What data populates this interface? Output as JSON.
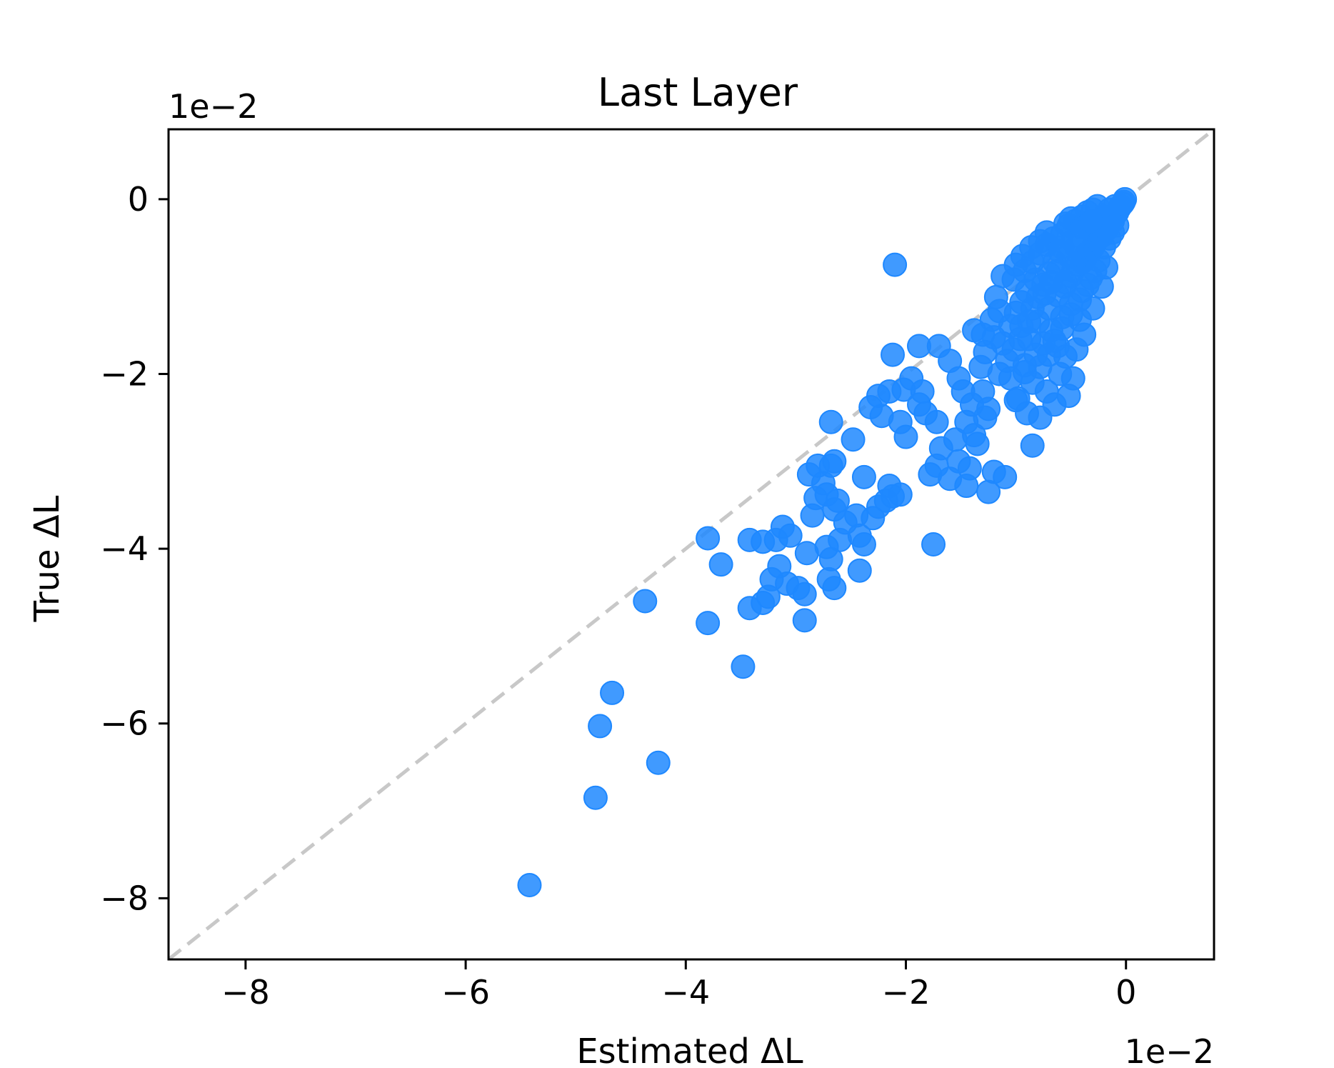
{
  "chart_data": {
    "type": "scatter",
    "title": "Last Layer",
    "xlabel": "Estimated ΔL",
    "ylabel": "True ΔL",
    "x_offset_text": "1e−2",
    "y_offset_text": "1e−2",
    "xlim": [
      -8.7,
      0.8
    ],
    "ylim": [
      -8.7,
      0.8
    ],
    "xticks": [
      -8,
      -6,
      -4,
      -2,
      0
    ],
    "xtick_labels": [
      "−8",
      "−6",
      "−4",
      "−2",
      "0"
    ],
    "yticks": [
      0,
      -2,
      -4,
      -6,
      -8
    ],
    "ytick_labels": [
      "0",
      "−2",
      "−4",
      "−6",
      "−8"
    ],
    "grid": false,
    "reference_line": {
      "slope": 1,
      "intercept": 0,
      "style": "dashed",
      "color": "#c8c8c8"
    },
    "marker_color": "#1e88ff",
    "points": [
      [
        -5.42,
        -7.85
      ],
      [
        -4.82,
        -6.85
      ],
      [
        -4.25,
        -6.45
      ],
      [
        -4.78,
        -6.03
      ],
      [
        -4.67,
        -5.65
      ],
      [
        -4.37,
        -4.6
      ],
      [
        -3.8,
        -4.85
      ],
      [
        -3.48,
        -5.35
      ],
      [
        -3.8,
        -3.88
      ],
      [
        -3.68,
        -4.18
      ],
      [
        -3.42,
        -4.68
      ],
      [
        -3.3,
        -4.62
      ],
      [
        -3.25,
        -4.55
      ],
      [
        -3.42,
        -3.9
      ],
      [
        -3.3,
        -3.92
      ],
      [
        -3.18,
        -3.9
      ],
      [
        -3.15,
        -4.2
      ],
      [
        -3.22,
        -4.35
      ],
      [
        -3.12,
        -3.75
      ],
      [
        -3.05,
        -3.85
      ],
      [
        -3.08,
        -4.4
      ],
      [
        -2.98,
        -4.45
      ],
      [
        -2.92,
        -4.82
      ],
      [
        -2.92,
        -4.52
      ],
      [
        -2.9,
        -4.05
      ],
      [
        -2.85,
        -3.62
      ],
      [
        -2.82,
        -3.42
      ],
      [
        -2.88,
        -3.15
      ],
      [
        -2.8,
        -3.05
      ],
      [
        -2.75,
        -3.25
      ],
      [
        -2.72,
        -3.38
      ],
      [
        -2.68,
        -3.05
      ],
      [
        -2.65,
        -3.0
      ],
      [
        -2.62,
        -3.45
      ],
      [
        -2.65,
        -3.55
      ],
      [
        -2.6,
        -3.9
      ],
      [
        -2.68,
        -4.12
      ],
      [
        -2.7,
        -4.35
      ],
      [
        -2.65,
        -4.45
      ],
      [
        -2.72,
        -3.98
      ],
      [
        -2.55,
        -3.7
      ],
      [
        -2.45,
        -3.62
      ],
      [
        -2.42,
        -3.85
      ],
      [
        -2.38,
        -3.95
      ],
      [
        -2.42,
        -4.25
      ],
      [
        -2.38,
        -3.18
      ],
      [
        -2.48,
        -2.75
      ],
      [
        -2.68,
        -2.55
      ],
      [
        -2.3,
        -3.65
      ],
      [
        -2.25,
        -3.52
      ],
      [
        -2.18,
        -3.45
      ],
      [
        -2.12,
        -3.4
      ],
      [
        -2.15,
        -3.28
      ],
      [
        -2.05,
        -3.38
      ],
      [
        -2.32,
        -2.38
      ],
      [
        -2.25,
        -2.25
      ],
      [
        -2.15,
        -2.2
      ],
      [
        -2.22,
        -2.48
      ],
      [
        -2.05,
        -2.55
      ],
      [
        -2.0,
        -2.72
      ],
      [
        -2.02,
        -2.18
      ],
      [
        -1.95,
        -2.05
      ],
      [
        -1.88,
        -2.35
      ],
      [
        -1.82,
        -2.45
      ],
      [
        -1.85,
        -2.2
      ],
      [
        -1.72,
        -2.55
      ],
      [
        -1.68,
        -2.85
      ],
      [
        -1.72,
        -3.05
      ],
      [
        -1.78,
        -3.15
      ],
      [
        -1.75,
        -3.95
      ],
      [
        -1.7,
        -1.68
      ],
      [
        -1.6,
        -1.85
      ],
      [
        -1.52,
        -2.05
      ],
      [
        -1.48,
        -2.2
      ],
      [
        -1.55,
        -2.75
      ],
      [
        -1.52,
        -3.0
      ],
      [
        -1.6,
        -3.2
      ],
      [
        -1.45,
        -3.28
      ],
      [
        -1.42,
        -3.08
      ],
      [
        -1.38,
        -2.7
      ],
      [
        -1.28,
        -2.5
      ],
      [
        -1.25,
        -2.4
      ],
      [
        -1.3,
        -2.2
      ],
      [
        -1.2,
        -3.12
      ],
      [
        -1.25,
        -3.35
      ],
      [
        -1.1,
        -3.18
      ],
      [
        -1.38,
        -1.5
      ],
      [
        -1.3,
        -1.55
      ],
      [
        -1.2,
        -1.58
      ],
      [
        -1.15,
        -1.28
      ],
      [
        -1.12,
        -0.88
      ],
      [
        -1.02,
        -0.92
      ],
      [
        -0.95,
        -1.45
      ],
      [
        -0.92,
        -1.9
      ],
      [
        -0.98,
        -2.28
      ],
      [
        -0.9,
        -2.45
      ],
      [
        -0.85,
        -2.82
      ],
      [
        -0.78,
        -2.5
      ],
      [
        -1.05,
        -2.05
      ],
      [
        -1.0,
        -2.3
      ],
      [
        -0.72,
        -2.2
      ],
      [
        -0.65,
        -2.35
      ],
      [
        -0.6,
        -2.0
      ],
      [
        -0.52,
        -2.25
      ],
      [
        -0.48,
        -2.05
      ],
      [
        -0.55,
        -1.8
      ],
      [
        -0.45,
        -1.72
      ],
      [
        -0.38,
        -1.55
      ],
      [
        -0.42,
        -1.38
      ],
      [
        -0.3,
        -1.25
      ],
      [
        -0.22,
        -1.0
      ],
      [
        -0.18,
        -0.78
      ],
      [
        -0.25,
        -0.7
      ],
      [
        -0.32,
        -0.9
      ],
      [
        -0.4,
        -1.05
      ],
      [
        -0.5,
        -1.2
      ],
      [
        -0.58,
        -1.35
      ],
      [
        -0.68,
        -1.5
      ],
      [
        -0.75,
        -1.65
      ],
      [
        -0.82,
        -1.78
      ],
      [
        -0.88,
        -1.6
      ],
      [
        -0.8,
        -1.4
      ],
      [
        -0.7,
        -1.25
      ],
      [
        -0.62,
        -1.1
      ],
      [
        -0.55,
        -0.95
      ],
      [
        -0.48,
        -0.82
      ],
      [
        -0.4,
        -0.72
      ],
      [
        -0.33,
        -0.6
      ],
      [
        -0.28,
        -0.5
      ],
      [
        -0.22,
        -0.42
      ],
      [
        -0.18,
        -0.35
      ],
      [
        -0.12,
        -0.25
      ],
      [
        -0.08,
        -0.15
      ],
      [
        -0.05,
        -0.08
      ],
      [
        -0.02,
        -0.03
      ],
      [
        -0.01,
        0.0
      ],
      [
        -0.03,
        -0.05
      ],
      [
        -0.06,
        -0.1
      ],
      [
        -0.1,
        -0.18
      ],
      [
        -0.14,
        -0.22
      ],
      [
        -0.16,
        -0.28
      ],
      [
        -0.2,
        -0.32
      ],
      [
        -0.24,
        -0.38
      ],
      [
        -0.26,
        -0.45
      ],
      [
        -0.3,
        -0.55
      ],
      [
        -0.35,
        -0.62
      ],
      [
        -0.38,
        -0.68
      ],
      [
        -0.44,
        -0.75
      ],
      [
        -0.5,
        -0.88
      ],
      [
        -0.56,
        -1.0
      ],
      [
        -0.6,
        -0.6
      ],
      [
        -0.65,
        -0.72
      ],
      [
        -0.7,
        -0.85
      ],
      [
        -0.75,
        -0.98
      ],
      [
        -0.8,
        -1.12
      ],
      [
        -0.85,
        -1.25
      ],
      [
        -0.9,
        -1.05
      ],
      [
        -0.95,
        -1.18
      ],
      [
        -1.0,
        -1.3
      ],
      [
        -1.05,
        -1.45
      ],
      [
        -0.92,
        -0.82
      ],
      [
        -0.85,
        -0.72
      ],
      [
        -0.78,
        -0.62
      ],
      [
        -0.72,
        -0.52
      ],
      [
        -0.66,
        -0.45
      ],
      [
        -0.58,
        -0.4
      ],
      [
        -0.52,
        -0.3
      ],
      [
        -0.46,
        -0.25
      ],
      [
        -0.4,
        -0.2
      ],
      [
        -0.35,
        -0.15
      ],
      [
        -0.3,
        -0.12
      ],
      [
        -0.26,
        -0.08
      ],
      [
        -0.45,
        -0.55
      ],
      [
        -0.52,
        -0.65
      ],
      [
        -0.62,
        -0.82
      ],
      [
        -0.68,
        -0.95
      ],
      [
        -0.74,
        -1.08
      ],
      [
        -0.82,
        -0.92
      ],
      [
        -0.78,
        -0.48
      ],
      [
        -0.72,
        -0.38
      ],
      [
        -0.55,
        -0.28
      ],
      [
        -0.5,
        -0.22
      ],
      [
        -0.42,
        -0.42
      ],
      [
        -0.36,
        -0.3
      ],
      [
        -0.3,
        -0.35
      ],
      [
        -0.25,
        -0.28
      ],
      [
        -0.2,
        -0.2
      ],
      [
        -0.15,
        -0.12
      ],
      [
        -0.1,
        -0.08
      ],
      [
        -0.88,
        -1.4
      ],
      [
        -0.96,
        -1.6
      ],
      [
        -1.02,
        -1.72
      ],
      [
        -1.08,
        -1.85
      ],
      [
        -1.15,
        -2.0
      ],
      [
        -1.12,
        -1.65
      ],
      [
        -0.65,
        -1.62
      ],
      [
        -0.58,
        -1.48
      ],
      [
        -0.5,
        -1.32
      ],
      [
        -0.42,
        -1.15
      ],
      [
        -0.35,
        -0.98
      ],
      [
        -0.28,
        -0.82
      ],
      [
        -0.92,
        -1.98
      ],
      [
        -0.85,
        -2.1
      ],
      [
        -0.78,
        -1.92
      ],
      [
        -0.7,
        -1.78
      ],
      [
        -0.62,
        -1.68
      ],
      [
        -1.18,
        -1.12
      ],
      [
        -1.22,
        -1.38
      ],
      [
        -1.28,
        -1.75
      ],
      [
        -1.32,
        -1.92
      ],
      [
        -1.4,
        -2.35
      ],
      [
        -1.45,
        -2.55
      ],
      [
        -1.35,
        -2.8
      ],
      [
        -0.58,
        -0.55
      ],
      [
        -0.48,
        -0.48
      ],
      [
        -0.86,
        -0.55
      ],
      [
        -0.94,
        -0.65
      ],
      [
        -1.0,
        -0.75
      ],
      [
        -0.4,
        -0.32
      ],
      [
        -0.32,
        -0.25
      ],
      [
        -0.2,
        -0.55
      ],
      [
        -0.15,
        -0.45
      ],
      [
        -0.12,
        -0.38
      ],
      [
        -0.08,
        -0.3
      ],
      [
        -2.1,
        -0.75
      ],
      [
        -1.88,
        -1.68
      ],
      [
        -2.12,
        -1.78
      ]
    ]
  }
}
